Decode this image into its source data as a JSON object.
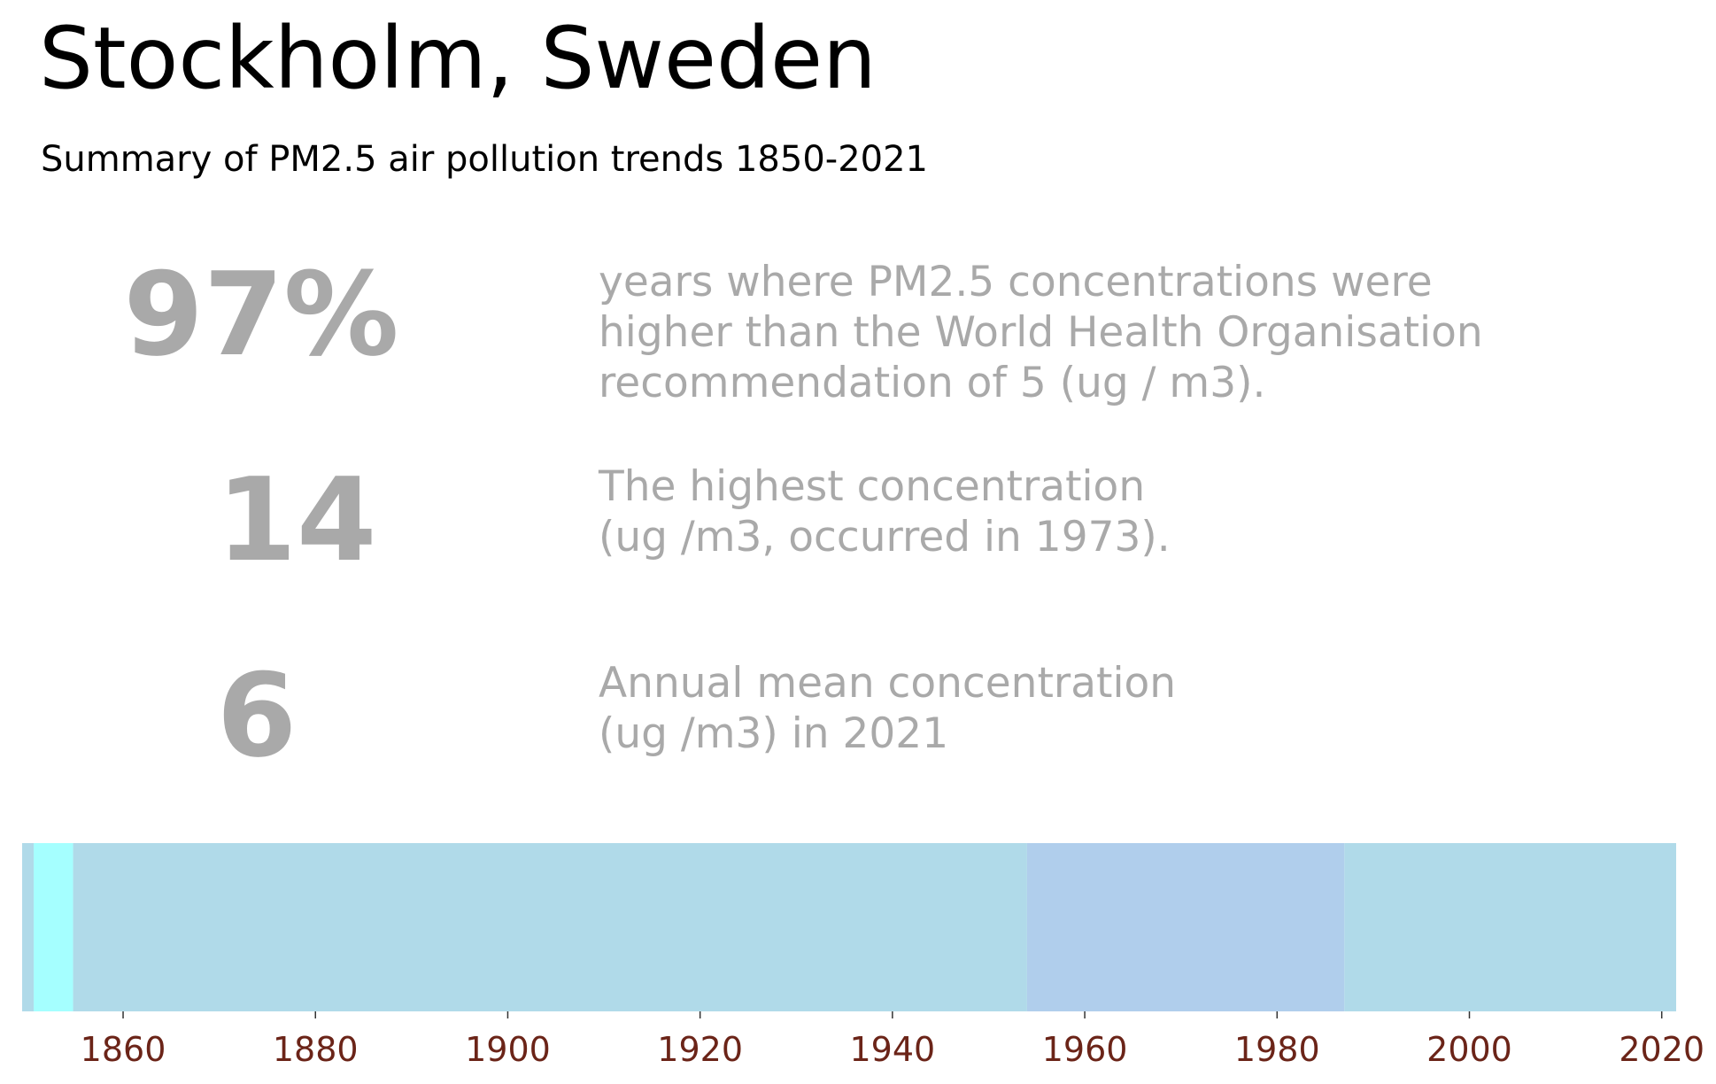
{
  "title": "Stockholm, Sweden",
  "subtitle": "Summary of PM2.5 air pollution trends 1850-2021",
  "stats": [
    {
      "value": "97%",
      "lines": [
        "years where PM2.5 concentrations were",
        "higher than the World Health Organisation",
        "recommendation of 5 (ug / m3)."
      ]
    },
    {
      "value": "14",
      "lines": [
        "The highest concentration",
        "(ug /m3, occurred in 1973)."
      ]
    },
    {
      "value": "6",
      "lines": [
        "Annual mean concentration",
        "(ug /m3) in 2021"
      ]
    }
  ],
  "colors": {
    "stat_text": "#a9a9a9",
    "tick_text": "#6b2418"
  },
  "chart_data": {
    "type": "heatmap",
    "title": "",
    "xlabel": "",
    "ylabel": "",
    "xlim": [
      1849.5,
      2021.5
    ],
    "xticks": [
      1860,
      1880,
      1900,
      1920,
      1940,
      1960,
      1980,
      2000,
      2020
    ],
    "grid": false,
    "legend": "none",
    "segments": [
      {
        "start": 1849.5,
        "end": 1850.7,
        "color": "#b0dae9"
      },
      {
        "start": 1850.7,
        "end": 1854.8,
        "color": "#a5ffff"
      },
      {
        "start": 1854.8,
        "end": 1954.0,
        "color": "#b0dae9"
      },
      {
        "start": 1954.0,
        "end": 1987.0,
        "color": "#b0ceec"
      },
      {
        "start": 1987.0,
        "end": 2021.5,
        "color": "#b0dae9"
      }
    ]
  }
}
